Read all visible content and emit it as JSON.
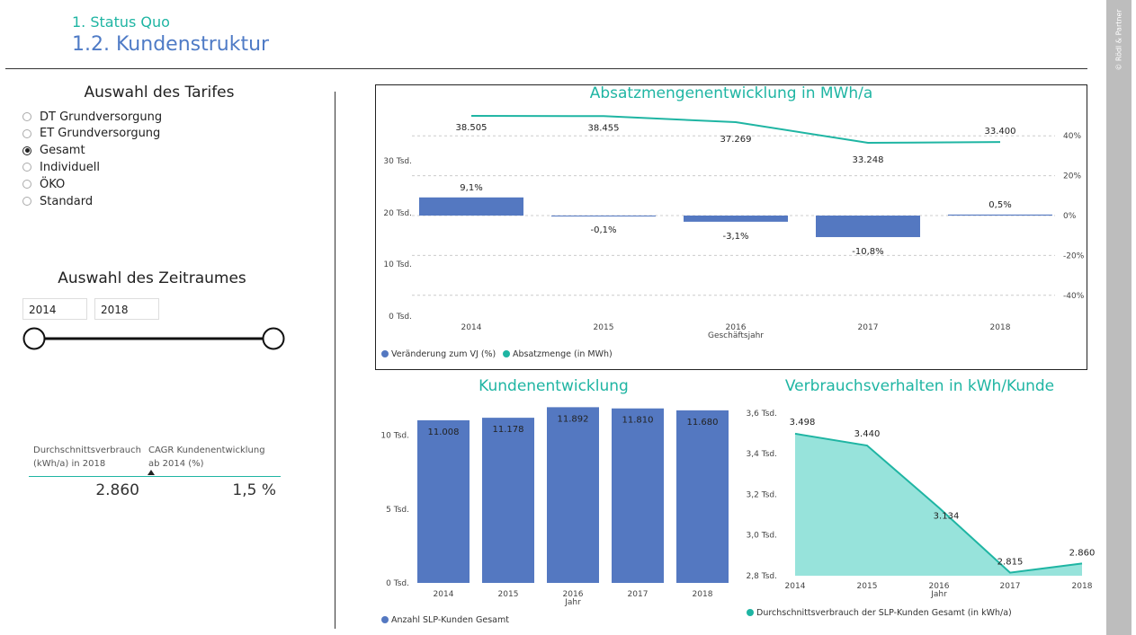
{
  "header": {
    "section": "1. Status Quo",
    "title": "1.2. Kundenstruktur"
  },
  "copyright": "© Rödl & Partner",
  "tarif_slicer": {
    "title": "Auswahl des Tarifes",
    "options": [
      "DT Grundversorgung",
      "ET Grundversorgung",
      "Gesamt",
      "Individuell",
      "ÖKO",
      "Standard"
    ],
    "selected": "Gesamt"
  },
  "zeitraum_slicer": {
    "title": "Auswahl des Zeitraumes",
    "from": "2014",
    "to": "2018"
  },
  "kpis": {
    "avg_label": "Durchschnittsverbrauch (kWh/a) in 2018",
    "avg_value": "2.860",
    "cagr_label": "CAGR Kundenentwicklung ab 2014 (%)",
    "cagr_value": "1,5 %"
  },
  "colors": {
    "teal": "#1fb5a3",
    "blue": "#5478c1",
    "area": "#97e3db"
  },
  "chart_data": [
    {
      "type": "bar",
      "title": "Absatzmengenentwicklung in MWh/a",
      "xlabel": "Geschäftsjahr",
      "categories": [
        "2014",
        "2015",
        "2016",
        "2017",
        "2018"
      ],
      "left_axis_ticks": [
        "0 Tsd.",
        "10 Tsd.",
        "20 Tsd.",
        "30 Tsd."
      ],
      "right_axis_ticks": [
        "40%",
        "20%",
        "0%",
        "-20%",
        "-40%"
      ],
      "right_ylim": [
        -50,
        50
      ],
      "series": [
        {
          "name": "Veränderung zum VJ (%)",
          "type": "bar",
          "values": [
            9.1,
            -0.1,
            -3.1,
            -10.8,
            0.5
          ],
          "labels": [
            "9,1%",
            "-0,1%",
            "-3,1%",
            "-10,8%",
            "0,5%"
          ]
        },
        {
          "name": "Absatzmenge (in MWh)",
          "type": "line",
          "values": [
            38505,
            38455,
            37269,
            33248,
            33400
          ],
          "labels": [
            "38.505",
            "38.455",
            "37.269",
            "33.248",
            "33.400"
          ]
        }
      ]
    },
    {
      "type": "bar",
      "title": "Kundenentwicklung",
      "xlabel": "Jahr",
      "categories": [
        "2014",
        "2015",
        "2016",
        "2017",
        "2018"
      ],
      "ylim": [
        0,
        12000
      ],
      "y_ticks": [
        "0 Tsd.",
        "5 Tsd.",
        "10 Tsd."
      ],
      "series": [
        {
          "name": "Anzahl SLP-Kunden Gesamt",
          "values": [
            11008,
            11178,
            11892,
            11810,
            11680
          ],
          "labels": [
            "11.008",
            "11.178",
            "11.892",
            "11.810",
            "11.680"
          ]
        }
      ]
    },
    {
      "type": "area",
      "title": "Verbrauchsverhalten in kWh/Kunde",
      "xlabel": "Jahr",
      "categories": [
        "2014",
        "2015",
        "2016",
        "2017",
        "2018"
      ],
      "ylim": [
        2800,
        3600
      ],
      "y_ticks": [
        "2,8 Tsd.",
        "3,0 Tsd.",
        "3,2 Tsd.",
        "3,4 Tsd.",
        "3,6 Tsd."
      ],
      "series": [
        {
          "name": "Durchschnittsverbrauch der SLP-Kunden Gesamt (in kWh/a)",
          "values": [
            3498,
            3440,
            3134,
            2815,
            2860
          ],
          "labels": [
            "3.498",
            "3.440",
            "3.134",
            "2.815",
            "2.860"
          ]
        }
      ]
    }
  ]
}
